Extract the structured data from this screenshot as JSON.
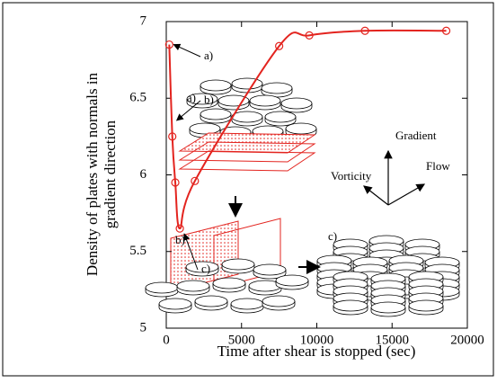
{
  "chart_data": {
    "type": "line",
    "xlabel": "Time after shear is stopped (sec)",
    "ylabel": [
      "Density of plates with normals in",
      "gradient direction"
    ],
    "x": [
      200,
      400,
      600,
      900,
      1900,
      7500,
      9500,
      13200,
      18600
    ],
    "series": [
      {
        "color": "#e3241f",
        "values": [
          6.85,
          6.25,
          5.95,
          5.65,
          5.96,
          6.84,
          6.91,
          6.94,
          6.94
        ]
      }
    ],
    "xlim": [
      0,
      20000
    ],
    "xticks": [
      0,
      5000,
      10000,
      15000,
      20000
    ],
    "ylim": [
      5,
      7
    ],
    "yticks": [
      5,
      5.5,
      6,
      6.5,
      7
    ],
    "point_labels": [
      "a)",
      "b)",
      "c)"
    ],
    "diagram_labels": [
      "a)",
      "b)",
      "c)"
    ],
    "axis_labels": {
      "gradient": "Gradient",
      "vorticity": "Vorticity",
      "flow": "Flow"
    }
  }
}
